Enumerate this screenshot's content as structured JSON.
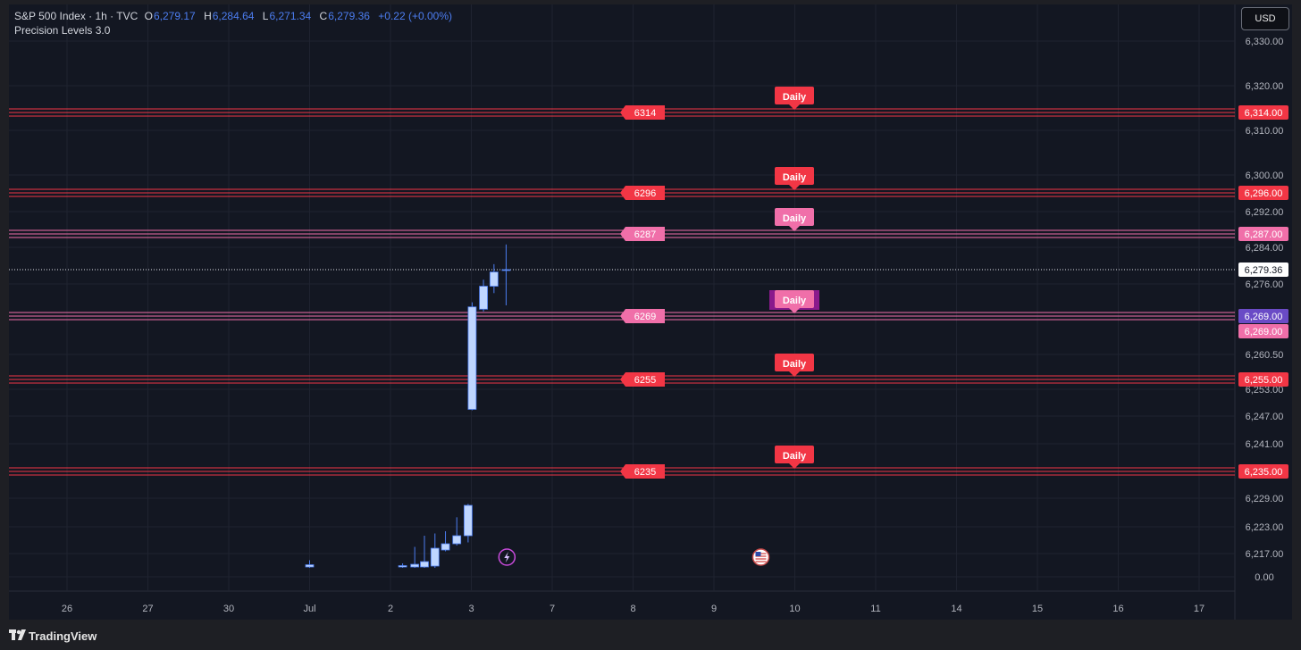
{
  "header": {
    "symbol": "S&P 500 Index · 1h · TVC",
    "open_label": "O",
    "open": "6,279.17",
    "high_label": "H",
    "high": "6,284.64",
    "low_label": "L",
    "low": "6,271.34",
    "close_label": "C",
    "close": "6,279.36",
    "change": "+0.22 (+0.00%)",
    "indicator": "Precision Levels 3.0"
  },
  "currency": "USD",
  "brand": "TradingView",
  "colors": {
    "background": "#131722",
    "red_level": "#f23645",
    "pink_level": "#f06fa9",
    "candle": "#bfd6ff",
    "candle_border": "#4c7df0",
    "price_line": "#e0e3eb"
  },
  "chart_data": {
    "type": "candlestick",
    "title": "",
    "x_ticks": [
      "26",
      "27",
      "30",
      "Jul",
      "2",
      "3",
      "7",
      "8",
      "9",
      "10",
      "11",
      "14",
      "15",
      "16",
      "17"
    ],
    "y_ticks": [
      "6,330.00",
      "6,320.00",
      "6,310.00",
      "6,300.00",
      "6,292.00",
      "6,284.00",
      "6,276.00",
      "6,260.50",
      "6,253.00",
      "6,247.00",
      "6,241.00",
      "6,229.00",
      "6,223.00",
      "6,217.00",
      "0.00"
    ],
    "current_price": "6,279.36",
    "levels": [
      {
        "value": 6314,
        "label": "6314",
        "axis_label": "6,314.00",
        "tag": "Daily",
        "color": "red"
      },
      {
        "value": 6296,
        "label": "6296",
        "axis_label": "6,296.00",
        "tag": "Daily",
        "color": "red"
      },
      {
        "value": 6287,
        "label": "6287",
        "axis_label": "6,287.00",
        "tag": "Daily",
        "color": "pink"
      },
      {
        "value": 6269,
        "label": "6269",
        "axis_label": "6,269.00",
        "tag": "Daily",
        "color": "pink"
      },
      {
        "value": 6255,
        "label": "6255",
        "axis_label": "6,255.00",
        "tag": "Daily",
        "color": "red"
      },
      {
        "value": 6235,
        "label": "6235",
        "axis_label": "6,235.00",
        "tag": "Daily",
        "color": "red"
      }
    ],
    "extra_axis_label": "6,269.00",
    "candles": [
      {
        "slot": 3.0,
        "open": 6214,
        "close": 6214.5,
        "high": 6215.5,
        "low": 6213.8
      },
      {
        "slot": 4.15,
        "open": 6214,
        "close": 6214.3,
        "high": 6214.8,
        "low": 6213.8
      },
      {
        "slot": 4.3,
        "open": 6214,
        "close": 6214.6,
        "high": 6218.5,
        "low": 6213.8
      },
      {
        "slot": 4.42,
        "open": 6214,
        "close": 6215.2,
        "high": 6221.0,
        "low": 6213.8
      },
      {
        "slot": 4.55,
        "open": 6214.2,
        "close": 6218.2,
        "high": 6221.5,
        "low": 6213.8
      },
      {
        "slot": 4.68,
        "open": 6217.8,
        "close": 6219.2,
        "high": 6222.0,
        "low": 6217.5
      },
      {
        "slot": 4.82,
        "open": 6219.2,
        "close": 6221.0,
        "high": 6225.0,
        "low": 6218.8
      },
      {
        "slot": 4.96,
        "open": 6221.0,
        "close": 6227.5,
        "high": 6227.8,
        "low": 6219.5
      },
      {
        "slot": 5.01,
        "open": 6248.5,
        "close": 6271.0,
        "high": 6272.0,
        "low": 6248.3
      },
      {
        "slot": 5.15,
        "open": 6270.5,
        "close": 6275.5,
        "high": 6277.0,
        "low": 6270.0
      },
      {
        "slot": 5.28,
        "open": 6275.5,
        "close": 6278.8,
        "high": 6280.5,
        "low": 6274.0
      },
      {
        "slot": 5.43,
        "open": 6279.17,
        "close": 6279.36,
        "high": 6284.64,
        "low": 6271.34
      }
    ],
    "events": [
      {
        "slot": 5.44,
        "icon": "lightning"
      },
      {
        "slot": 8.58,
        "icon": "flag"
      }
    ],
    "grid": true
  }
}
